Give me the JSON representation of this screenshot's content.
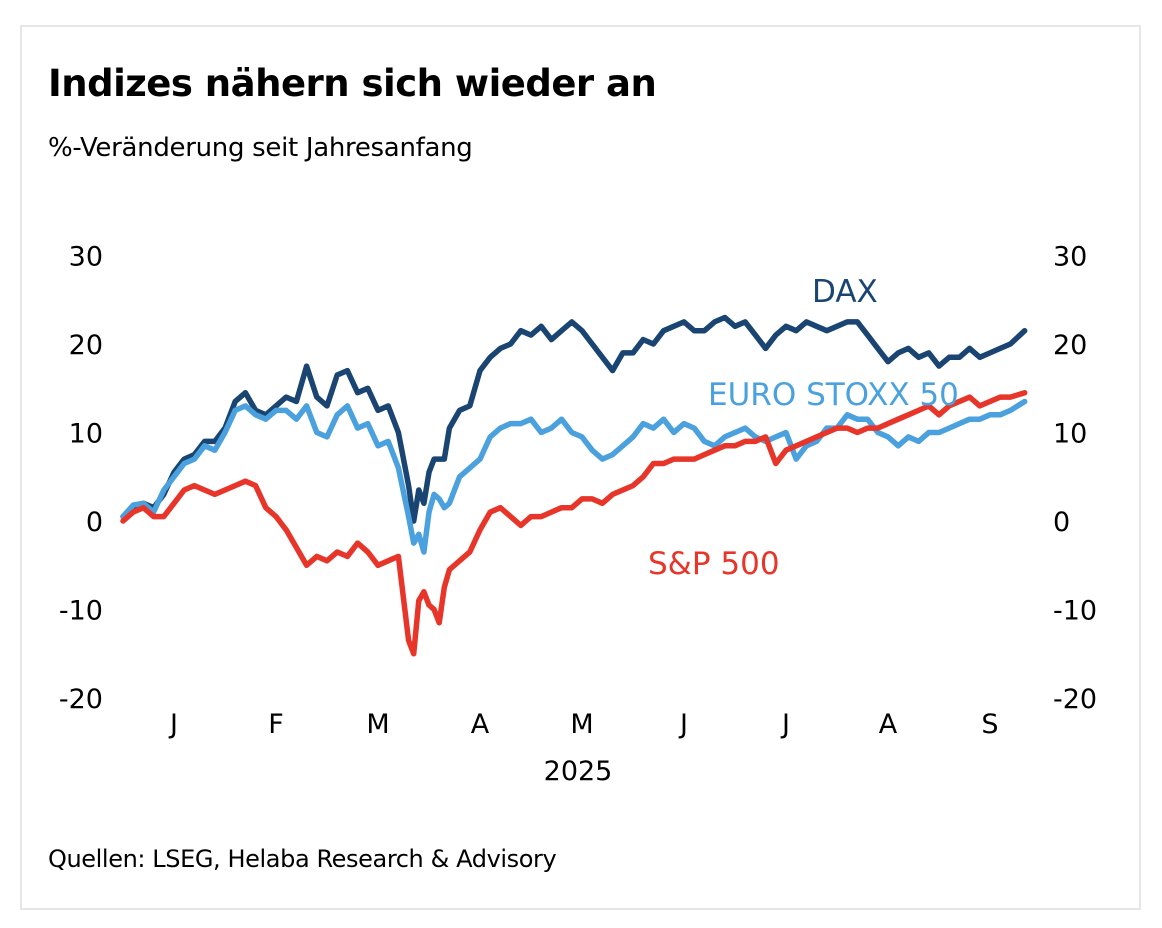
{
  "chart_data": {
    "type": "line",
    "title": "Indizes nähern sich wieder an",
    "subtitle": "%-Veränderung seit Jahresanfang",
    "source": "Quellen: LSEG, Helaba Research & Advisory",
    "xlabel": "2025",
    "ylabel": "",
    "ylim": [
      -20,
      30
    ],
    "yticks": [
      30,
      20,
      10,
      0,
      -10,
      -20
    ],
    "ytick_labels": [
      "30",
      "20",
      "10",
      "0",
      "-10",
      "-20"
    ],
    "dual_y_axis": true,
    "grid": false,
    "x_months": [
      "J",
      "F",
      "M",
      "A",
      "M",
      "J",
      "J",
      "A",
      "S"
    ],
    "x_unit": "months since 1 Jan 2025",
    "x": [
      0.0,
      0.1,
      0.2,
      0.3,
      0.4,
      0.5,
      0.6,
      0.7,
      0.8,
      0.9,
      1.0,
      1.1,
      1.2,
      1.3,
      1.4,
      1.5,
      1.6,
      1.7,
      1.8,
      1.9,
      2.0,
      2.1,
      2.2,
      2.3,
      2.4,
      2.5,
      2.6,
      2.7,
      2.8,
      2.85,
      2.9,
      2.95,
      3.0,
      3.05,
      3.1,
      3.15,
      3.2,
      3.3,
      3.4,
      3.5,
      3.6,
      3.7,
      3.8,
      3.9,
      4.0,
      4.1,
      4.2,
      4.3,
      4.4,
      4.5,
      4.6,
      4.7,
      4.8,
      4.9,
      5.0,
      5.1,
      5.2,
      5.3,
      5.4,
      5.5,
      5.6,
      5.7,
      5.8,
      5.9,
      6.0,
      6.1,
      6.2,
      6.3,
      6.4,
      6.5,
      6.6,
      6.7,
      6.8,
      6.9,
      7.0,
      7.1,
      7.2,
      7.3,
      7.4,
      7.5,
      7.6,
      7.7,
      7.8,
      7.9,
      8.0,
      8.1,
      8.2,
      8.3,
      8.4,
      8.5,
      8.6,
      8.7,
      8.84
    ],
    "series": [
      {
        "name": "DAX",
        "color": "#1a4572",
        "values": [
          0.5,
          1.5,
          2.0,
          1.5,
          3.0,
          5.5,
          7.0,
          7.5,
          9.0,
          9.0,
          10.5,
          13.5,
          14.5,
          12.5,
          12.0,
          13.0,
          14.0,
          13.5,
          17.5,
          14.0,
          13.0,
          16.5,
          17.0,
          14.5,
          15.0,
          12.5,
          13.0,
          10.0,
          4.0,
          0.0,
          3.5,
          2.0,
          5.5,
          7.0,
          7.0,
          7.0,
          10.5,
          12.5,
          13.0,
          17.0,
          18.5,
          19.5,
          20.0,
          21.5,
          21.0,
          22.0,
          20.5,
          21.5,
          22.5,
          21.5,
          20.0,
          18.5,
          17.0,
          19.0,
          19.0,
          20.5,
          20.0,
          21.5,
          22.0,
          22.5,
          21.5,
          21.5,
          22.5,
          23.0,
          22.0,
          22.5,
          21.0,
          19.5,
          21.0,
          22.0,
          21.5,
          22.5,
          22.0,
          21.5,
          22.0,
          22.5,
          22.5,
          21.0,
          19.5,
          18.0,
          19.0,
          19.5,
          18.5,
          19.0,
          17.5,
          18.5,
          18.5,
          19.5,
          18.5,
          19.0,
          19.5,
          20.0,
          21.5
        ]
      },
      {
        "name": "EURO STOXX 50",
        "color": "#4aa1de",
        "values": [
          0.5,
          1.8,
          2.0,
          1.0,
          3.5,
          5.0,
          6.5,
          7.0,
          8.5,
          8.0,
          10.0,
          12.5,
          13.0,
          12.0,
          11.5,
          12.5,
          12.5,
          11.5,
          13.0,
          10.0,
          9.5,
          12.0,
          13.0,
          10.5,
          11.0,
          8.5,
          9.0,
          6.0,
          0.5,
          -2.5,
          -1.5,
          -3.5,
          1.0,
          3.0,
          2.5,
          1.5,
          2.0,
          5.0,
          6.0,
          7.0,
          9.5,
          10.5,
          11.0,
          11.0,
          11.5,
          10.0,
          10.5,
          11.5,
          10.0,
          9.5,
          8.0,
          7.0,
          7.5,
          8.5,
          9.5,
          11.0,
          10.5,
          11.5,
          10.0,
          11.0,
          10.5,
          9.0,
          8.5,
          9.5,
          10.0,
          10.5,
          9.5,
          9.0,
          9.5,
          10.0,
          7.0,
          8.5,
          9.0,
          10.5,
          10.5,
          12.0,
          11.5,
          11.5,
          10.0,
          9.5,
          8.5,
          9.5,
          9.0,
          10.0,
          10.0,
          10.5,
          11.0,
          11.5,
          11.5,
          12.0,
          12.0,
          12.5,
          13.5
        ]
      },
      {
        "name": "S&P 500",
        "color": "#e8352a",
        "values": [
          0.0,
          1.0,
          1.5,
          0.5,
          0.5,
          2.0,
          3.5,
          4.0,
          3.5,
          3.0,
          3.5,
          4.0,
          4.5,
          4.0,
          1.5,
          0.5,
          -1.0,
          -3.0,
          -5.0,
          -4.0,
          -4.5,
          -3.5,
          -4.0,
          -2.5,
          -3.5,
          -5.0,
          -4.5,
          -4.0,
          -13.5,
          -15.0,
          -9.0,
          -8.0,
          -9.5,
          -10.0,
          -11.5,
          -7.5,
          -5.5,
          -4.5,
          -3.5,
          -1.0,
          1.0,
          1.5,
          0.5,
          -0.5,
          0.5,
          0.5,
          1.0,
          1.5,
          1.5,
          2.5,
          2.5,
          2.0,
          3.0,
          3.5,
          4.0,
          5.0,
          6.5,
          6.5,
          7.0,
          7.0,
          7.0,
          7.5,
          8.0,
          8.5,
          8.5,
          9.0,
          9.0,
          9.5,
          6.5,
          8.0,
          8.5,
          9.0,
          9.5,
          10.0,
          10.5,
          10.5,
          10.0,
          10.5,
          10.5,
          11.0,
          11.5,
          12.0,
          12.5,
          13.0,
          12.0,
          13.0,
          13.5,
          14.0,
          13.0,
          13.5,
          14.0,
          14.0,
          14.5
        ]
      }
    ],
    "annotations": [
      {
        "text": "DAX",
        "series": "DAX"
      },
      {
        "text": "EURO STOXX 50",
        "series": "EURO STOXX 50"
      },
      {
        "text": "S&P 500",
        "series": "S&P 500"
      }
    ],
    "legend": "inline labels"
  }
}
